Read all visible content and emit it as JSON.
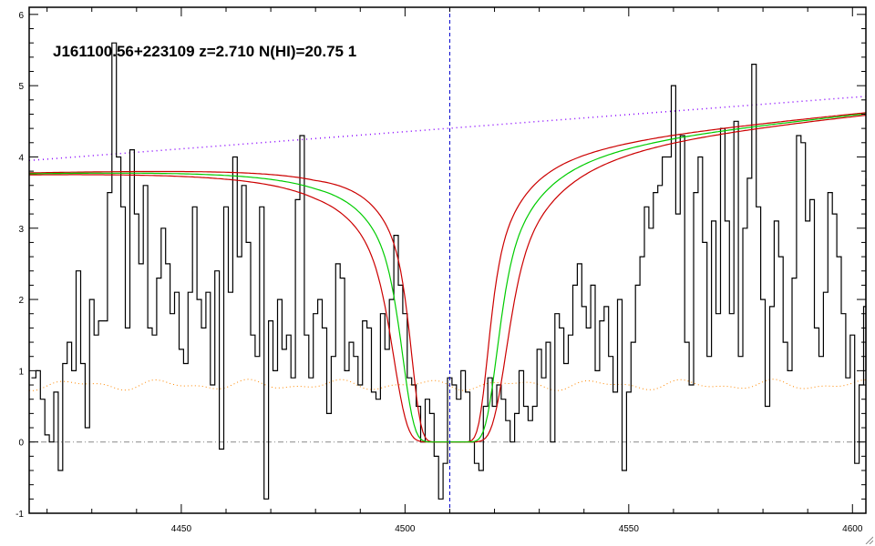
{
  "chart_data": {
    "type": "line",
    "title": "J161100.56+223109 z=2.710 N(HI)=20.75 1",
    "xlabel": "",
    "ylabel": "",
    "xlim": [
      4416,
      4603
    ],
    "ylim": [
      -1,
      6.1
    ],
    "x_ticks": [
      4450,
      4500,
      4550,
      4600
    ],
    "y_ticks": [
      -1,
      0,
      1,
      2,
      3,
      4,
      5,
      6
    ],
    "grid": false,
    "legend": "none",
    "reference_lines": {
      "absorption_center_x": 4510,
      "zero_level_y": 0
    },
    "colors": {
      "flux": "#000000",
      "fit": "#00cc00",
      "fit_bounds": "#cc0000",
      "continuum": "#8800ff",
      "error": "#ff8800",
      "center_line": "#0000cc",
      "zero_line": "#888888"
    },
    "fit_model": {
      "center": 4510,
      "voigt_width": 6.2,
      "bound_widths": [
        5.0,
        7.4
      ],
      "damping": 2.2
    },
    "continuum": {
      "x": [
        4416,
        4603
      ],
      "y": [
        3.95,
        4.85
      ]
    },
    "fit_continuum": {
      "x": [
        4416,
        4480,
        4560,
        4603
      ],
      "y": [
        3.8,
        3.9,
        4.4,
        4.65
      ]
    },
    "error_level": 0.8,
    "flux": {
      "x_start": 4417,
      "step": 1,
      "y": [
        0.9,
        1.0,
        0.6,
        0.1,
        0.0,
        0.7,
        -0.4,
        1.1,
        1.4,
        1.0,
        2.4,
        1.1,
        0.2,
        2.0,
        1.5,
        1.7,
        1.7,
        3.5,
        5.6,
        4.0,
        3.3,
        1.6,
        4.1,
        3.2,
        2.5,
        3.6,
        1.6,
        1.5,
        2.3,
        3.0,
        2.5,
        1.8,
        2.1,
        1.3,
        1.1,
        2.1,
        3.3,
        2.0,
        1.6,
        2.1,
        0.8,
        2.4,
        -0.1,
        3.3,
        2.1,
        4.0,
        2.6,
        3.6,
        2.8,
        1.5,
        1.2,
        3.3,
        -0.8,
        1.7,
        1.0,
        2.0,
        1.3,
        1.5,
        0.9,
        3.4,
        4.3,
        1.5,
        0.9,
        1.8,
        2.0,
        1.6,
        0.4,
        1.2,
        2.5,
        2.3,
        1.0,
        1.4,
        1.2,
        0.8,
        1.7,
        1.6,
        0.7,
        0.6,
        1.8,
        1.3,
        2.0,
        2.9,
        2.2,
        1.8,
        0.9,
        0.8,
        0.5,
        0.0,
        0.6,
        0.4,
        -0.2,
        -0.8,
        -0.3,
        0.9,
        0.8,
        0.6,
        1.0,
        0.7,
        0.0,
        -0.3,
        -0.4,
        0.5,
        0.9,
        0.5,
        0.8,
        0.6,
        0.3,
        0.0,
        0.4,
        1.0,
        0.5,
        0.3,
        0.5,
        1.3,
        0.9,
        1.4,
        0.0,
        1.8,
        1.6,
        1.1,
        1.5,
        2.2,
        2.5,
        1.9,
        1.6,
        2.2,
        1.0,
        1.7,
        1.9,
        1.2,
        0.7,
        2.0,
        -0.4,
        0.7,
        1.4,
        2.2,
        2.6,
        3.3,
        3.0,
        3.5,
        3.6,
        4.0,
        4.0,
        5.0,
        3.2,
        4.3,
        1.4,
        0.8,
        3.5,
        4.0,
        2.8,
        1.2,
        3.1,
        1.8,
        4.4,
        3.1,
        1.8,
        4.5,
        1.2,
        3.0,
        3.7,
        5.3,
        3.3,
        2.0,
        0.5,
        1.9,
        3.1,
        2.6,
        1.4,
        1.0,
        2.3,
        4.3,
        4.2,
        3.1,
        3.4,
        1.6,
        1.2,
        2.1,
        3.5,
        3.2,
        2.6,
        1.8,
        0.9,
        1.5,
        -0.3,
        0.8,
        1.9,
        2.7,
        3.7,
        3.4,
        1.0
      ]
    }
  }
}
